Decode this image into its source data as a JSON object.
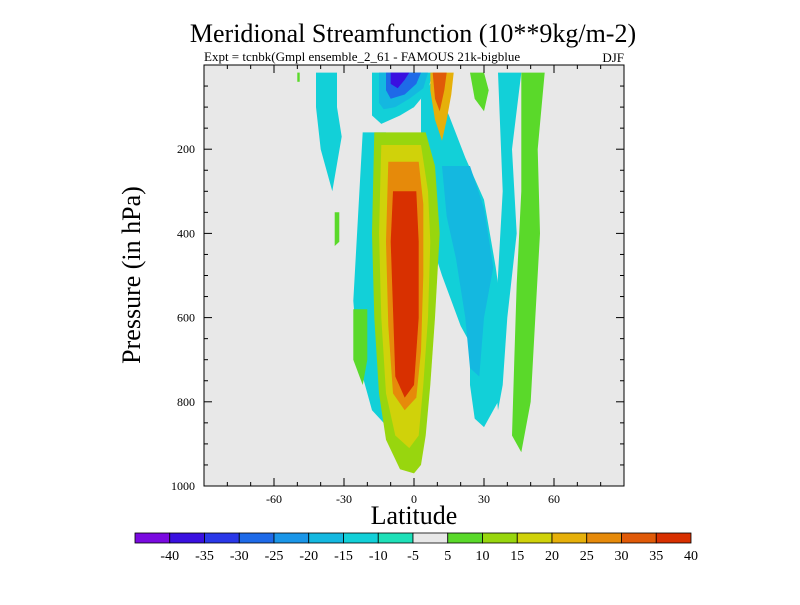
{
  "chart_data": {
    "type": "contour",
    "title": "Meridional Streamfunction (10**9kg/m-2)",
    "subtitle": "Expt = tcnbk(Gmpl ensemble_2_61 - FAMOUS 21k-bigblue",
    "season": "DJF",
    "xlabel": "Latitude",
    "ylabel": "Pressure (in hPa)",
    "xlim": [
      -90,
      90
    ],
    "ylim": [
      1000,
      0
    ],
    "x_ticks": [
      -60,
      -30,
      0,
      30,
      60
    ],
    "x_tick_labels": [
      "-60",
      "-30",
      "0",
      "30",
      "60"
    ],
    "y_ticks": [
      200,
      400,
      600,
      800,
      1000
    ],
    "y_tick_labels": [
      "200",
      "400",
      "600",
      "800",
      "1000"
    ],
    "colorbar": {
      "labels": [
        "-40",
        "-35",
        "-30",
        "-25",
        "-20",
        "-15",
        "-10",
        "-5",
        "5",
        "10",
        "15",
        "20",
        "25",
        "30",
        "35",
        "40"
      ],
      "colors": [
        "#7a0ae0",
        "#3a10e0",
        "#2a38e8",
        "#1e6ae8",
        "#1a96e8",
        "#14b8e0",
        "#12d0d8",
        "#1ee0b8",
        "#e8e8e8",
        "#5ad92a",
        "#98d60e",
        "#d0d20a",
        "#e6b00a",
        "#e68a0a",
        "#e05a08",
        "#d83000"
      ]
    },
    "regions": [
      {
        "level": "-10",
        "points": [
          [
            -42,
            18
          ],
          [
            -33,
            18
          ],
          [
            -33,
            100
          ],
          [
            -31,
            170
          ],
          [
            -35,
            300
          ],
          [
            -40,
            200
          ],
          [
            -42,
            100
          ]
        ]
      },
      {
        "level": "-10",
        "points": [
          [
            -18,
            18
          ],
          [
            8,
            18
          ],
          [
            6,
            60
          ],
          [
            0,
            100
          ],
          [
            -6,
            120
          ],
          [
            -14,
            140
          ],
          [
            -18,
            120
          ]
        ]
      },
      {
        "level": "-15",
        "points": [
          [
            -15,
            18
          ],
          [
            6,
            18
          ],
          [
            4,
            55
          ],
          [
            -2,
            80
          ],
          [
            -8,
            100
          ],
          [
            -13,
            105
          ],
          [
            -15,
            90
          ]
        ]
      },
      {
        "level": "-25",
        "points": [
          [
            -12,
            18
          ],
          [
            3,
            18
          ],
          [
            1,
            45
          ],
          [
            -4,
            70
          ],
          [
            -10,
            80
          ],
          [
            -12,
            60
          ]
        ]
      },
      {
        "level": "-35",
        "points": [
          [
            -10,
            18
          ],
          [
            -2,
            18
          ],
          [
            -4,
            35
          ],
          [
            -7,
            55
          ],
          [
            -10,
            45
          ]
        ]
      },
      {
        "level": "-10",
        "points": [
          [
            3,
            80
          ],
          [
            8,
            35
          ],
          [
            15,
            120
          ],
          [
            22,
            220
          ],
          [
            30,
            320
          ],
          [
            35,
            480
          ],
          [
            38,
            600
          ],
          [
            38,
            700
          ],
          [
            36,
            800
          ],
          [
            30,
            860
          ],
          [
            26,
            840
          ],
          [
            24,
            760
          ],
          [
            24,
            660
          ],
          [
            20,
            620
          ],
          [
            12,
            500
          ],
          [
            5,
            380
          ],
          [
            3,
            250
          ]
        ]
      },
      {
        "level": "-15",
        "points": [
          [
            12,
            240
          ],
          [
            24,
            240
          ],
          [
            30,
            340
          ],
          [
            34,
            480
          ],
          [
            30,
            600
          ],
          [
            28,
            740
          ],
          [
            24,
            720
          ],
          [
            22,
            600
          ],
          [
            18,
            460
          ],
          [
            14,
            360
          ]
        ]
      },
      {
        "level": "-10",
        "points": [
          [
            -22,
            160
          ],
          [
            -12,
            160
          ],
          [
            -10,
            300
          ],
          [
            -12,
            600
          ],
          [
            -8,
            880
          ],
          [
            -18,
            820
          ],
          [
            -24,
            700
          ],
          [
            -26,
            560
          ],
          [
            -24,
            360
          ]
        ]
      },
      {
        "level": "15",
        "points": [
          [
            -17,
            160
          ],
          [
            5,
            160
          ],
          [
            9,
            240
          ],
          [
            11,
            400
          ],
          [
            9,
            600
          ],
          [
            7,
            760
          ],
          [
            5,
            880
          ],
          [
            3,
            950
          ],
          [
            0,
            970
          ],
          [
            -6,
            960
          ],
          [
            -12,
            890
          ],
          [
            -15,
            780
          ],
          [
            -17,
            600
          ],
          [
            -18,
            400
          ]
        ]
      },
      {
        "level": "20",
        "points": [
          [
            -14,
            190
          ],
          [
            3,
            190
          ],
          [
            6,
            300
          ],
          [
            7,
            420
          ],
          [
            6,
            600
          ],
          [
            4,
            760
          ],
          [
            2,
            880
          ],
          [
            -2,
            910
          ],
          [
            -8,
            880
          ],
          [
            -12,
            780
          ],
          [
            -14,
            600
          ],
          [
            -15,
            400
          ]
        ]
      },
      {
        "level": "30",
        "points": [
          [
            -11,
            230
          ],
          [
            2,
            230
          ],
          [
            4,
            330
          ],
          [
            4,
            500
          ],
          [
            3,
            680
          ],
          [
            1,
            790
          ],
          [
            -4,
            820
          ],
          [
            -9,
            780
          ],
          [
            -11,
            620
          ],
          [
            -12,
            420
          ]
        ]
      },
      {
        "level": "40",
        "points": [
          [
            -9,
            300
          ],
          [
            1,
            300
          ],
          [
            2,
            420
          ],
          [
            2,
            600
          ],
          [
            0,
            760
          ],
          [
            -4,
            790
          ],
          [
            -8,
            740
          ],
          [
            -9,
            580
          ],
          [
            -10,
            420
          ]
        ]
      },
      {
        "level": "25",
        "points": [
          [
            7,
            18
          ],
          [
            17,
            18
          ],
          [
            16,
            70
          ],
          [
            14,
            130
          ],
          [
            12,
            180
          ],
          [
            9,
            130
          ],
          [
            7,
            60
          ]
        ]
      },
      {
        "level": "35",
        "points": [
          [
            8,
            18
          ],
          [
            14,
            18
          ],
          [
            13,
            60
          ],
          [
            11,
            110
          ],
          [
            9,
            80
          ]
        ]
      },
      {
        "level": "10",
        "points": [
          [
            24,
            18
          ],
          [
            30,
            18
          ],
          [
            32,
            60
          ],
          [
            30,
            110
          ],
          [
            26,
            80
          ]
        ]
      },
      {
        "level": "10",
        "points": [
          [
            46,
            18
          ],
          [
            56,
            18
          ],
          [
            53,
            200
          ],
          [
            54,
            400
          ],
          [
            52,
            600
          ],
          [
            50,
            800
          ],
          [
            46,
            920
          ],
          [
            42,
            880
          ],
          [
            43,
            700
          ],
          [
            44,
            520
          ],
          [
            46,
            300
          ]
        ]
      },
      {
        "level": "-10",
        "points": [
          [
            36,
            18
          ],
          [
            46,
            18
          ],
          [
            42,
            200
          ],
          [
            44,
            400
          ],
          [
            40,
            600
          ],
          [
            38,
            760
          ],
          [
            36,
            820
          ],
          [
            34,
            700
          ],
          [
            36,
            500
          ],
          [
            38,
            300
          ]
        ]
      },
      {
        "level": "10",
        "points": [
          [
            -26,
            580
          ],
          [
            -20,
            580
          ],
          [
            -20,
            700
          ],
          [
            -22,
            760
          ],
          [
            -26,
            700
          ]
        ]
      },
      {
        "level": "10",
        "points": [
          [
            -34,
            350
          ],
          [
            -32,
            350
          ],
          [
            -32,
            420
          ],
          [
            -34,
            430
          ]
        ]
      },
      {
        "level": "10",
        "points": [
          [
            -50,
            18
          ],
          [
            -49,
            18
          ],
          [
            -49,
            40
          ],
          [
            -50,
            40
          ]
        ]
      }
    ]
  }
}
